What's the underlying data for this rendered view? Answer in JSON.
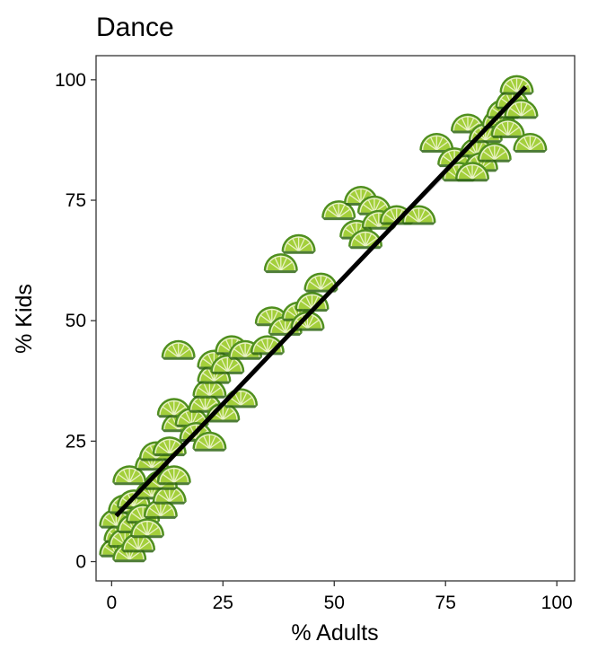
{
  "chart_data": {
    "type": "scatter",
    "title": "Dance",
    "xlabel": "% Adults",
    "ylabel": "% Kids",
    "xlim": [
      -3.5,
      104
    ],
    "ylim": [
      -4,
      105
    ],
    "xticks": [
      0,
      25,
      50,
      75,
      100
    ],
    "yticks": [
      0,
      25,
      50,
      75,
      100
    ],
    "grid": false,
    "marker": "lime-wedge-icon",
    "colors": {
      "lime_outer": "#4f8f1e",
      "lime_flesh": "#a3cf3b",
      "lime_pith": "#e9f2c4",
      "fit_line": "#000000",
      "ribbon": "#cfcfcf",
      "panel_border": "#333333"
    },
    "points": [
      {
        "x": 1,
        "y": 2
      },
      {
        "x": 2,
        "y": 5
      },
      {
        "x": 1,
        "y": 8
      },
      {
        "x": 3,
        "y": 4
      },
      {
        "x": 4,
        "y": 1
      },
      {
        "x": 5,
        "y": 7
      },
      {
        "x": 6,
        "y": 3
      },
      {
        "x": 3,
        "y": 11
      },
      {
        "x": 5,
        "y": 12
      },
      {
        "x": 7,
        "y": 9
      },
      {
        "x": 8,
        "y": 6
      },
      {
        "x": 9,
        "y": 14
      },
      {
        "x": 11,
        "y": 10
      },
      {
        "x": 13,
        "y": 13
      },
      {
        "x": 11,
        "y": 16
      },
      {
        "x": 4,
        "y": 17
      },
      {
        "x": 9,
        "y": 20
      },
      {
        "x": 10,
        "y": 22
      },
      {
        "x": 14,
        "y": 17
      },
      {
        "x": 13,
        "y": 23
      },
      {
        "x": 15,
        "y": 28
      },
      {
        "x": 14,
        "y": 31
      },
      {
        "x": 18,
        "y": 29
      },
      {
        "x": 19,
        "y": 26
      },
      {
        "x": 22,
        "y": 24
      },
      {
        "x": 21,
        "y": 32
      },
      {
        "x": 22,
        "y": 35
      },
      {
        "x": 23,
        "y": 38
      },
      {
        "x": 25,
        "y": 30
      },
      {
        "x": 29,
        "y": 33
      },
      {
        "x": 23,
        "y": 41
      },
      {
        "x": 26,
        "y": 40
      },
      {
        "x": 27,
        "y": 44
      },
      {
        "x": 30,
        "y": 43
      },
      {
        "x": 15,
        "y": 43
      },
      {
        "x": 35,
        "y": 44
      },
      {
        "x": 36,
        "y": 50
      },
      {
        "x": 39,
        "y": 48
      },
      {
        "x": 42,
        "y": 51
      },
      {
        "x": 44,
        "y": 49
      },
      {
        "x": 45,
        "y": 53
      },
      {
        "x": 47,
        "y": 57
      },
      {
        "x": 38,
        "y": 61
      },
      {
        "x": 42,
        "y": 65
      },
      {
        "x": 51,
        "y": 72
      },
      {
        "x": 55,
        "y": 68
      },
      {
        "x": 57,
        "y": 66
      },
      {
        "x": 56,
        "y": 75
      },
      {
        "x": 59,
        "y": 73
      },
      {
        "x": 60,
        "y": 70
      },
      {
        "x": 64,
        "y": 71
      },
      {
        "x": 69,
        "y": 71
      },
      {
        "x": 73,
        "y": 86
      },
      {
        "x": 77,
        "y": 83
      },
      {
        "x": 80,
        "y": 90
      },
      {
        "x": 78,
        "y": 80
      },
      {
        "x": 82,
        "y": 85
      },
      {
        "x": 84,
        "y": 88
      },
      {
        "x": 83,
        "y": 82
      },
      {
        "x": 86,
        "y": 84
      },
      {
        "x": 87,
        "y": 91
      },
      {
        "x": 88,
        "y": 93
      },
      {
        "x": 89,
        "y": 89
      },
      {
        "x": 90,
        "y": 95
      },
      {
        "x": 91,
        "y": 98
      },
      {
        "x": 92,
        "y": 93
      },
      {
        "x": 94,
        "y": 86
      },
      {
        "x": 81,
        "y": 80
      }
    ],
    "fit_line": {
      "x": [
        1,
        93
      ],
      "y": [
        9.5,
        98.5
      ]
    },
    "confidence_band": [
      {
        "x": 1,
        "lo": 8.6,
        "hi": 10.4
      },
      {
        "x": 20,
        "lo": 27.6,
        "hi": 28.6
      },
      {
        "x": 40,
        "lo": 47.0,
        "hi": 47.8
      },
      {
        "x": 60,
        "lo": 66.2,
        "hi": 67.2
      },
      {
        "x": 80,
        "lo": 84.6,
        "hi": 86.4
      },
      {
        "x": 93,
        "lo": 96.8,
        "hi": 100.2
      }
    ]
  }
}
